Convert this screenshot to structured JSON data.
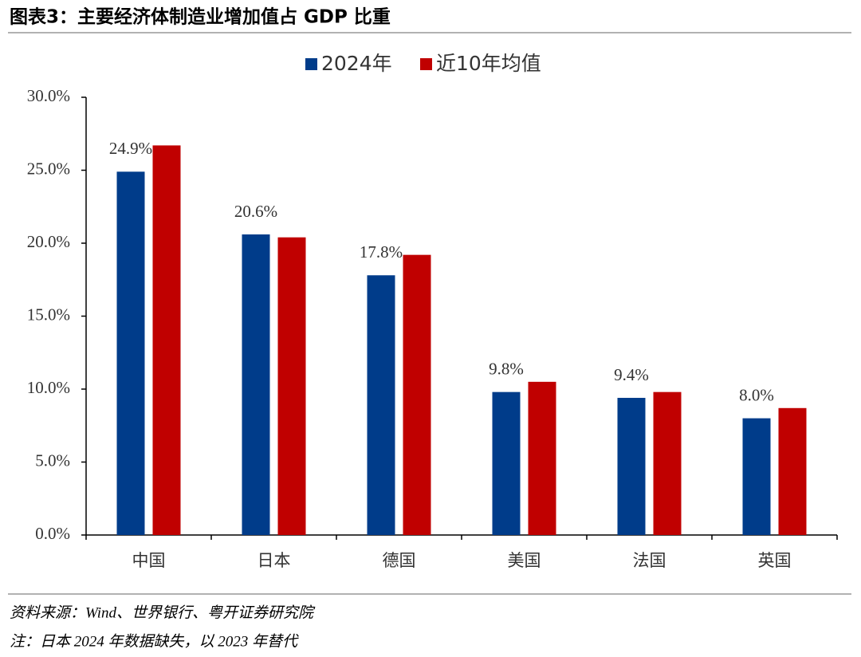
{
  "chart_data": {
    "type": "bar",
    "title": "图表3：主要经济体制造业增加值占 GDP 比重",
    "categories": [
      "中国",
      "日本",
      "德国",
      "美国",
      "法国",
      "英国"
    ],
    "series": [
      {
        "name": "2024年",
        "color": "#003c8a",
        "values": [
          24.9,
          20.6,
          17.8,
          9.8,
          9.4,
          8.0
        ],
        "value_labels": [
          "24.9%",
          "20.6%",
          "17.8%",
          "9.8%",
          "9.4%",
          "8.0%"
        ]
      },
      {
        "name": "近10年均值",
        "color": "#c00000",
        "values": [
          26.7,
          20.4,
          19.2,
          10.5,
          9.8,
          8.7
        ]
      }
    ],
    "ylim": [
      0,
      30
    ],
    "yticks": [
      {
        "value": 0,
        "label": "0.0%"
      },
      {
        "value": 5,
        "label": "5.0%"
      },
      {
        "value": 10,
        "label": "10.0%"
      },
      {
        "value": 15,
        "label": "15.0%"
      },
      {
        "value": 20,
        "label": "20.0%"
      },
      {
        "value": 25,
        "label": "25.0%"
      },
      {
        "value": 30,
        "label": "30.0%"
      }
    ],
    "grid": false,
    "legend": "top",
    "source": "资料来源：Wind、世界银行、粤开证券研究院",
    "note": "注：日本 2024 年数据缺失，以 2023 年替代"
  }
}
